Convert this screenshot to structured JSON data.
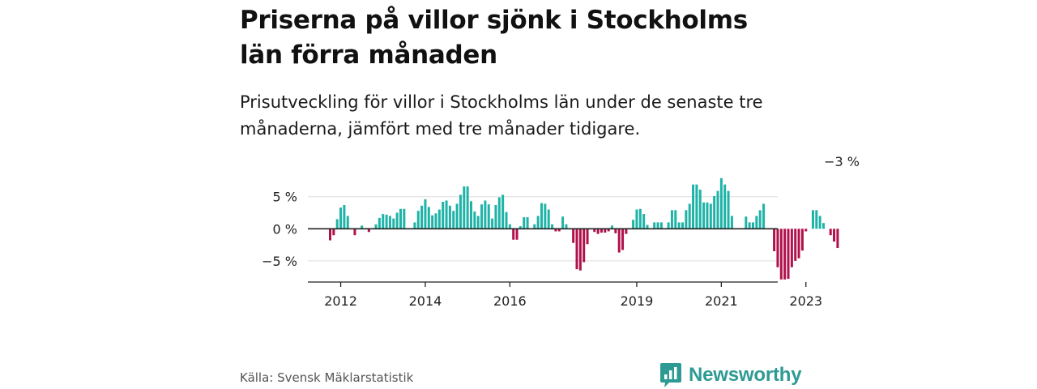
{
  "header": {
    "title": "Priserna på villor sjönk i Stockholms län förra månaden",
    "subtitle": "Prisutveckling för villor i Stockholms län under de senaste tre månaderna, jämfört med tre månader tidigare."
  },
  "footer": {
    "source": "Källa: Svensk Mäklarstatistik",
    "brand": "Newsworthy"
  },
  "colors": {
    "positive": "#1fb3a7",
    "negative": "#b0114b",
    "zero_line": "#222222",
    "grid": "#dddddd",
    "axis": "#222222",
    "brand": "#2d9a93"
  },
  "chart_data": {
    "type": "bar",
    "title": "Priserna på villor sjönk i Stockholms län förra månaden",
    "xlabel": "",
    "ylabel": "",
    "unit": "%",
    "ylim": [
      -8.3,
      8.5
    ],
    "y_ticks": [
      -5,
      0,
      5
    ],
    "y_tick_labels": [
      "−5 %",
      "0 %",
      "5 %"
    ],
    "x_start": "2011-10",
    "x_ticks": [
      {
        "month_index": 3,
        "label": "2012"
      },
      {
        "month_index": 27,
        "label": "2014"
      },
      {
        "month_index": 51,
        "label": "2016"
      },
      {
        "month_index": 87,
        "label": "2019"
      },
      {
        "month_index": 111,
        "label": "2021"
      },
      {
        "month_index": 135,
        "label": "2023"
      }
    ],
    "annotation": {
      "label": "−3 %",
      "month_index": 146
    },
    "series": [
      {
        "name": "Prisutveckling, villor Stockholms län (%)",
        "values": [
          -1.8,
          -1.0,
          1.5,
          3.3,
          3.7,
          2.0,
          0,
          -1.0,
          0,
          0.5,
          0,
          -0.5,
          0,
          0.7,
          1.7,
          2.3,
          2.2,
          2.0,
          1.6,
          2.5,
          3.1,
          3.1,
          0,
          0,
          1.0,
          2.8,
          3.6,
          4.6,
          3.4,
          2.1,
          2.4,
          3.0,
          4.2,
          4.4,
          3.6,
          2.8,
          3.9,
          5.3,
          6.6,
          6.6,
          4.3,
          2.7,
          2.0,
          3.8,
          4.4,
          3.8,
          1.6,
          3.7,
          4.9,
          5.3,
          2.6,
          0.7,
          -1.7,
          -1.7,
          0.4,
          1.8,
          1.8,
          0,
          0.7,
          2.0,
          4.0,
          3.9,
          3.0,
          0.7,
          -0.4,
          -0.4,
          1.9,
          0.7,
          -0.1,
          -2.2,
          -6.3,
          -6.5,
          -5.2,
          -2.4,
          0,
          -0.5,
          -0.8,
          -0.6,
          -0.6,
          -0.4,
          0.5,
          -0.7,
          -3.7,
          -3.3,
          -0.8,
          0,
          1.4,
          3.0,
          3.1,
          2.3,
          0.6,
          0,
          1.0,
          1.0,
          1.0,
          0,
          1.0,
          2.9,
          2.9,
          1.0,
          1.0,
          2.9,
          3.9,
          6.9,
          6.9,
          6.1,
          4.1,
          4.1,
          3.9,
          5.1,
          5.9,
          7.9,
          6.9,
          5.9,
          2.0,
          0,
          0,
          0,
          1.9,
          1.0,
          1.0,
          2.0,
          2.9,
          3.9,
          0,
          0,
          -3.5,
          -6.0,
          -7.9,
          -7.9,
          -7.8,
          -6.0,
          -5.0,
          -4.6,
          -3.4,
          -0.4,
          0,
          2.9,
          2.9,
          2.0,
          0.9,
          0,
          -1.0,
          -2.0,
          -3.0
        ]
      }
    ]
  }
}
